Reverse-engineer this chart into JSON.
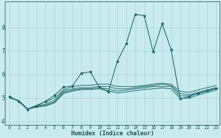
{
  "xlabel": "Humidex (Indice chaleur)",
  "background_color": "#c8eced",
  "grid_color": "#b0d8d8",
  "line_color": "#1a6b6b",
  "xlim": [
    -0.5,
    23.4
  ],
  "ylim": [
    3.85,
    9.1
  ],
  "xticks": [
    0,
    1,
    2,
    3,
    4,
    5,
    6,
    7,
    8,
    9,
    10,
    11,
    12,
    13,
    14,
    15,
    16,
    17,
    18,
    19,
    20,
    21,
    22,
    23
  ],
  "yticks": [
    4,
    5,
    6,
    7,
    8
  ],
  "series": [
    [
      5.0,
      4.88,
      4.52,
      4.6,
      4.65,
      4.78,
      5.18,
      5.28,
      5.35,
      5.35,
      5.38,
      5.3,
      5.2,
      5.25,
      5.3,
      5.35,
      5.38,
      5.42,
      5.38,
      4.98,
      4.98,
      5.12,
      5.22,
      5.32
    ],
    [
      5.0,
      4.88,
      4.52,
      4.63,
      4.68,
      4.82,
      5.22,
      5.33,
      5.38,
      5.38,
      5.42,
      5.38,
      5.28,
      5.33,
      5.38,
      5.42,
      5.48,
      5.48,
      5.48,
      5.08,
      5.08,
      5.18,
      5.28,
      5.38
    ],
    [
      5.0,
      4.88,
      4.52,
      4.65,
      4.73,
      4.88,
      5.28,
      5.38,
      5.43,
      5.43,
      5.48,
      5.48,
      5.38,
      5.38,
      5.43,
      5.48,
      5.52,
      5.58,
      5.52,
      5.18,
      5.13,
      5.23,
      5.33,
      5.43
    ],
    [
      5.0,
      4.88,
      4.52,
      4.68,
      4.83,
      4.98,
      5.33,
      5.48,
      5.53,
      5.53,
      5.58,
      5.58,
      5.48,
      5.48,
      5.48,
      5.52,
      5.58,
      5.62,
      5.58,
      5.28,
      5.23,
      5.33,
      5.43,
      5.52
    ],
    [
      5.05,
      4.85,
      4.5,
      4.65,
      4.85,
      5.1,
      5.45,
      5.5,
      6.05,
      6.1,
      5.45,
      5.25,
      6.55,
      7.3,
      8.55,
      8.5,
      6.95,
      8.15,
      7.05,
      4.95,
      5.05,
      5.2,
      5.3,
      5.4
    ]
  ]
}
